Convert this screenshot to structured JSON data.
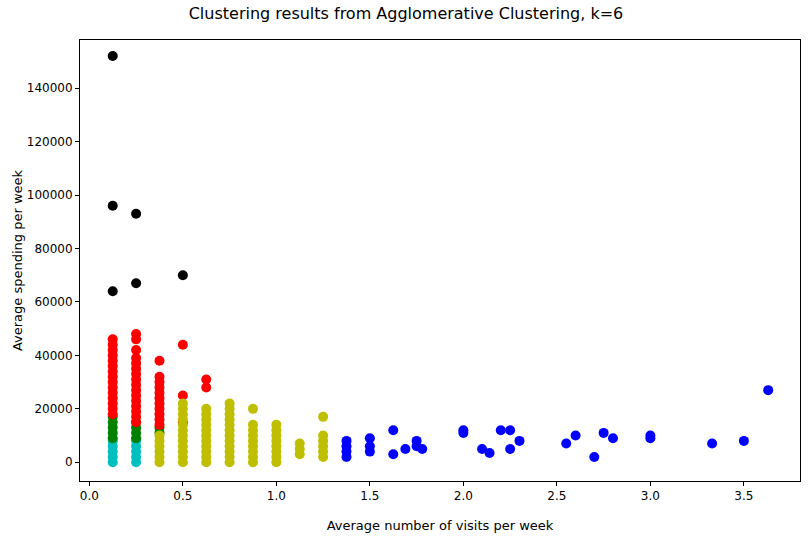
{
  "chart_data": {
    "type": "scatter",
    "title": "Clustering results from Agglomerative Clustering, k=6",
    "x_label": "Average number of visits per week",
    "y_label": "Average spending per week",
    "xlim": [
      -0.05,
      3.8
    ],
    "ylim": [
      -7000,
      158000
    ],
    "xticks": [
      {
        "value": 0,
        "label": "0.0"
      },
      0.5,
      {
        "value": 1,
        "label": "1.0"
      },
      1.5,
      {
        "value": 2,
        "label": "2.0"
      },
      2.5,
      {
        "value": 3,
        "label": "3.0"
      },
      3.5
    ],
    "yticks": [
      0,
      20000,
      40000,
      60000,
      80000,
      100000,
      120000,
      140000
    ],
    "grid": false,
    "marker": "circle",
    "series": [
      {
        "color": "#00bfbf",
        "x": [
          0.125,
          0.125,
          0.125,
          0.125,
          0.125,
          0.25,
          0.25,
          0.25,
          0.25,
          0.25
        ],
        "values": [
          0,
          2000,
          4000,
          6000,
          8000,
          0,
          2000,
          4000,
          6000,
          8000
        ]
      },
      {
        "color": "#008000",
        "x": [
          0.125,
          0.125,
          0.125,
          0.125,
          0.125,
          0.25,
          0.25,
          0.25,
          0.25,
          0.375,
          0.375
        ],
        "values": [
          9000,
          11000,
          13000,
          15000,
          17000,
          9000,
          11000,
          13000,
          15000,
          11000,
          13000
        ]
      },
      {
        "color": "#ff0000",
        "x": [
          0.125,
          0.125,
          0.125,
          0.125,
          0.125,
          0.125,
          0.125,
          0.125,
          0.125,
          0.125,
          0.125,
          0.125,
          0.125,
          0.125,
          0.125,
          0.25,
          0.25,
          0.25,
          0.25,
          0.25,
          0.25,
          0.25,
          0.25,
          0.25,
          0.25,
          0.25,
          0.25,
          0.25,
          0.25,
          0.25,
          0.25,
          0.375,
          0.375,
          0.375,
          0.375,
          0.375,
          0.375,
          0.375,
          0.375,
          0.375,
          0.375,
          0.375,
          0.5,
          0.5,
          0.5,
          0.625,
          0.625
        ],
        "values": [
          18000,
          20000,
          22000,
          24000,
          26000,
          28000,
          30000,
          32000,
          34000,
          36000,
          38000,
          40000,
          42000,
          44000,
          46000,
          15000,
          17000,
          19000,
          21000,
          23000,
          25000,
          27000,
          29000,
          31000,
          33000,
          35000,
          37000,
          39000,
          42000,
          46000,
          48000,
          14000,
          16000,
          18000,
          20000,
          22000,
          24000,
          26000,
          28000,
          30000,
          32000,
          38000,
          15000,
          25000,
          44000,
          28000,
          31000
        ]
      },
      {
        "color": "#bfbf00",
        "x": [
          0.375,
          0.375,
          0.375,
          0.375,
          0.375,
          0.375,
          0.5,
          0.5,
          0.5,
          0.5,
          0.5,
          0.5,
          0.5,
          0.5,
          0.5,
          0.5,
          0.5,
          0.5,
          0.625,
          0.625,
          0.625,
          0.625,
          0.625,
          0.625,
          0.625,
          0.625,
          0.625,
          0.625,
          0.625,
          0.75,
          0.75,
          0.75,
          0.75,
          0.75,
          0.75,
          0.75,
          0.75,
          0.75,
          0.75,
          0.75,
          0.75,
          0.875,
          0.875,
          0.875,
          0.875,
          0.875,
          0.875,
          0.875,
          0.875,
          0.875,
          1.0,
          1.0,
          1.0,
          1.0,
          1.0,
          1.0,
          1.0,
          1.0,
          1.125,
          1.125,
          1.125,
          1.25,
          1.25,
          1.25,
          1.25,
          1.25,
          1.25
        ],
        "values": [
          0,
          2000,
          4000,
          6000,
          8000,
          10000,
          0,
          2000,
          4000,
          6000,
          8000,
          10000,
          12000,
          14000,
          16000,
          18000,
          20000,
          22000,
          0,
          2000,
          4000,
          6000,
          8000,
          10000,
          12000,
          14000,
          16000,
          18000,
          20000,
          0,
          2000,
          4000,
          6000,
          8000,
          10000,
          12000,
          14000,
          16000,
          18000,
          20000,
          22000,
          0,
          2000,
          4000,
          6000,
          8000,
          10000,
          12000,
          14000,
          20000,
          0,
          2000,
          4000,
          6000,
          8000,
          10000,
          12000,
          14000,
          3000,
          5000,
          7000,
          2000,
          4000,
          6000,
          8000,
          10000,
          17000
        ]
      },
      {
        "color": "#0000ff",
        "x": [
          1.375,
          1.375,
          1.375,
          1.375,
          1.5,
          1.5,
          1.5,
          1.625,
          1.625,
          1.69,
          1.75,
          1.75,
          1.78,
          2.0,
          2.0,
          2.1,
          2.14,
          2.2,
          2.25,
          2.25,
          2.3,
          2.55,
          2.6,
          2.7,
          2.75,
          2.8,
          3.0,
          3.0,
          3.33,
          3.5,
          3.63
        ],
        "values": [
          2000,
          4000,
          6000,
          8000,
          4000,
          6000,
          9000,
          3000,
          12000,
          5000,
          6000,
          8000,
          5000,
          11000,
          12000,
          5000,
          3500,
          12000,
          12000,
          5000,
          8000,
          7000,
          10000,
          2000,
          11000,
          9000,
          9000,
          10000,
          7000,
          8000,
          27000
        ]
      },
      {
        "color": "#000000",
        "x": [
          0.125,
          0.125,
          0.125,
          0.25,
          0.25,
          0.5
        ],
        "values": [
          152000,
          96000,
          64000,
          93000,
          67000,
          70000
        ]
      }
    ]
  }
}
